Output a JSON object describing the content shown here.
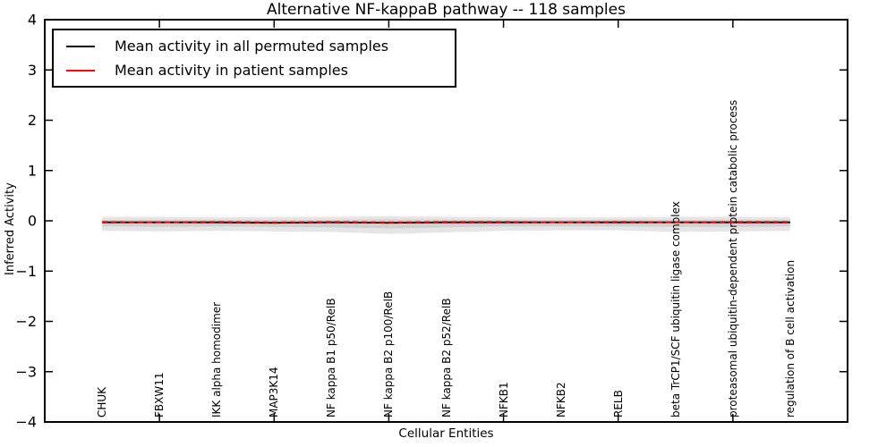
{
  "figure": {
    "background": "#ffffff"
  },
  "chart_data": {
    "type": "line",
    "title": "Alternative NF-kappaB pathway -- 118 samples",
    "xlabel": "Cellular Entities",
    "ylabel": "Inferred Activity",
    "ylim": [
      -4,
      4
    ],
    "yticks": [
      4,
      3,
      2,
      1,
      0,
      -1,
      -2,
      -3,
      -4
    ],
    "xlim_category_units": [
      -1,
      13
    ],
    "xtick_category_positions": [
      1,
      3,
      5,
      7,
      9,
      11
    ],
    "grid": false,
    "categories": [
      "CHUK",
      "FBXW11",
      "IKK alpha homodimer",
      "MAP3K14",
      "NF kappa B1 p50/RelB",
      "NF kappa B2 p100/RelB",
      "NF kappa B2 p52/RelB",
      "NFKB1",
      "NFKB2",
      "RELB",
      "beta TrCP1/SCF ubiquitin ligase complex",
      "proteasomal ubiquitin-dependent protein catabolic process",
      "regulation of B cell activation"
    ],
    "series": [
      {
        "name": "Mean activity in all permuted samples",
        "color": "#000000",
        "line_style": "solid",
        "values": [
          -0.03,
          -0.03,
          -0.03,
          -0.04,
          -0.03,
          -0.04,
          -0.03,
          -0.03,
          -0.03,
          -0.03,
          -0.03,
          -0.03,
          -0.03
        ]
      },
      {
        "name": "Mean activity in patient samples",
        "color": "#ff0000",
        "line_style": "dashed",
        "values": [
          -0.02,
          -0.03,
          -0.02,
          -0.03,
          -0.02,
          -0.03,
          -0.02,
          -0.02,
          -0.03,
          -0.02,
          -0.03,
          -0.02,
          -0.02
        ]
      }
    ],
    "bands": [
      {
        "name": "permuted activity spread (outer)",
        "color": "rgba(0,0,0,0.10)",
        "top": [
          0.08,
          0.08,
          0.07,
          0.08,
          0.08,
          0.09,
          0.08,
          0.07,
          0.07,
          0.07,
          0.08,
          0.08,
          0.07
        ],
        "bottom": [
          -0.2,
          -0.21,
          -0.2,
          -0.21,
          -0.22,
          -0.26,
          -0.23,
          -0.2,
          -0.19,
          -0.19,
          -0.22,
          -0.21,
          -0.2
        ]
      },
      {
        "name": "permuted activity spread (inner)",
        "color": "rgba(0,0,0,0.09)",
        "top": [
          0.02,
          0.02,
          0.02,
          0.02,
          0.02,
          0.03,
          0.02,
          0.02,
          0.02,
          0.02,
          0.02,
          0.02,
          0.02
        ],
        "bottom": [
          -0.11,
          -0.12,
          -0.11,
          -0.12,
          -0.13,
          -0.15,
          -0.13,
          -0.11,
          -0.11,
          -0.11,
          -0.12,
          -0.12,
          -0.11
        ]
      }
    ],
    "legend": {
      "position": "upper left"
    }
  }
}
